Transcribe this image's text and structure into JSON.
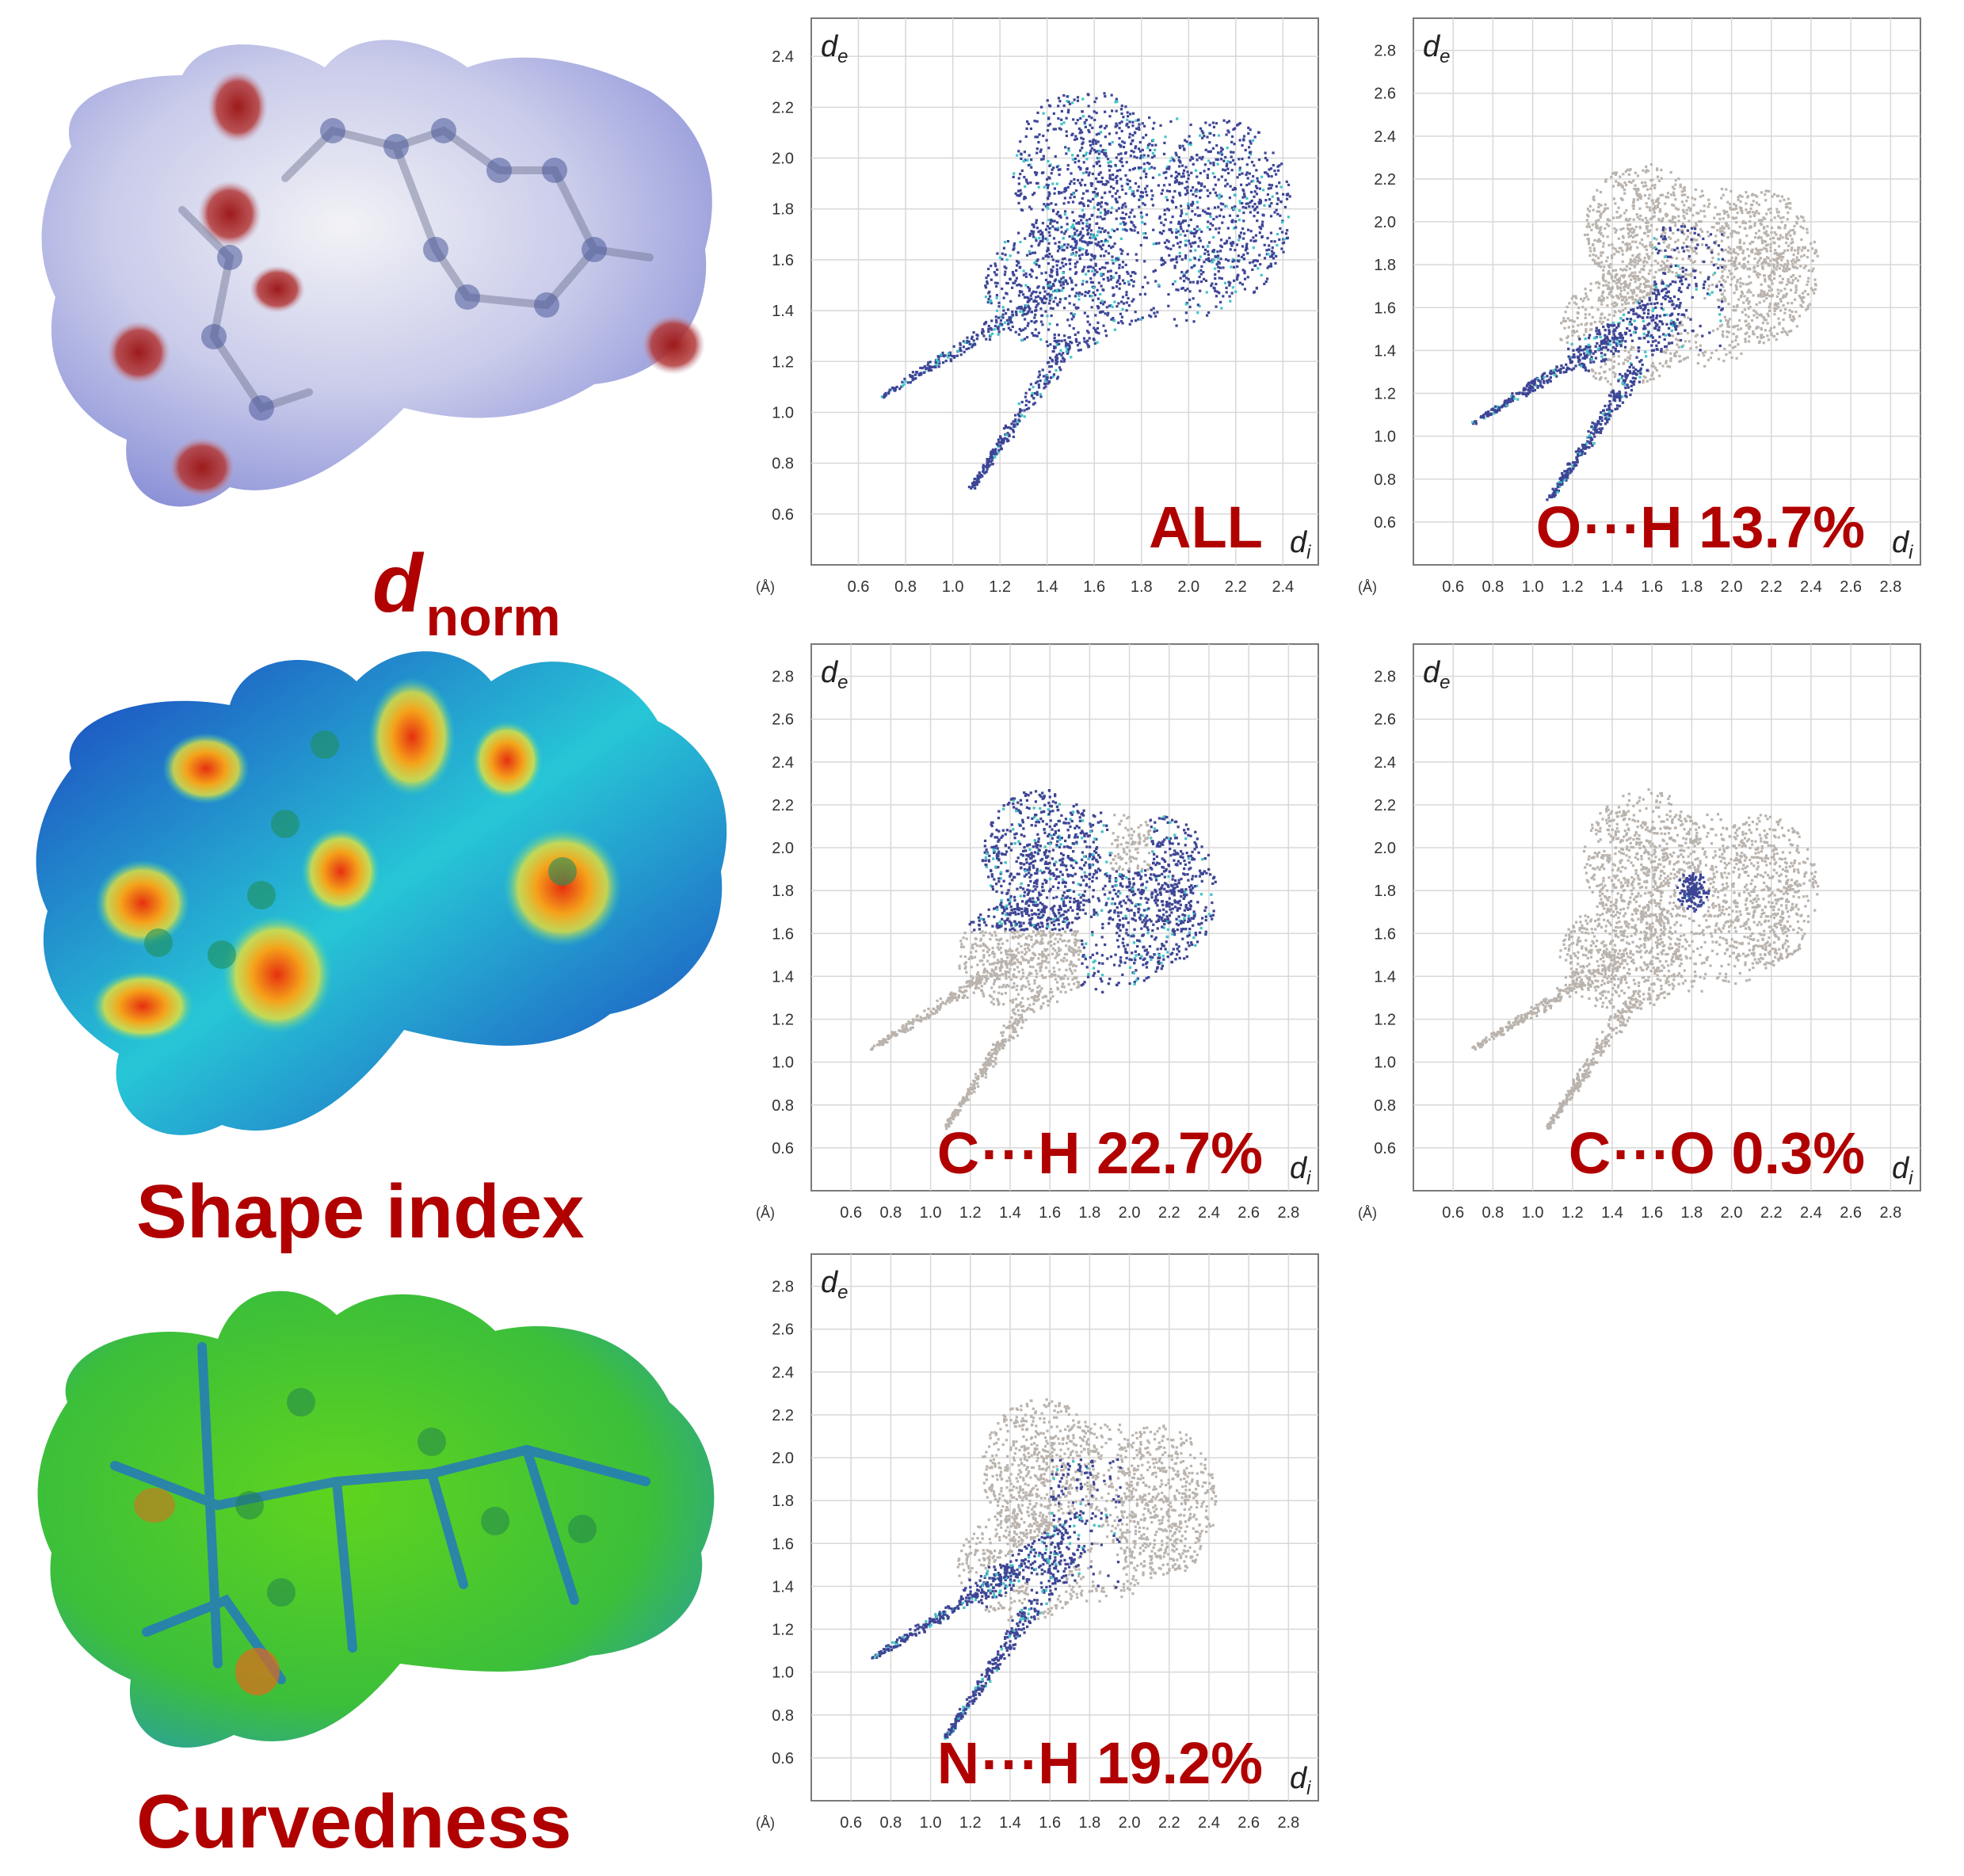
{
  "surfaces": {
    "dnorm_label": {
      "main": "d",
      "sub": "norm"
    },
    "shape_index_label": "Shape index",
    "curvedness_label": "Curvedness"
  },
  "colors": {
    "label_red": "#b00000",
    "highlight": "#3d4596",
    "highlight_light": "#41c6c8",
    "background_points": "#bab3ad",
    "grid": "#d8d8d8",
    "frame": "#7a7a7a"
  },
  "chart_data": [
    {
      "type": "scatter",
      "title": "ALL",
      "xlabel": "d_i",
      "ylabel": "d_e",
      "unit_label": "(Å)",
      "xlim": [
        0.4,
        2.55
      ],
      "ylim": [
        0.4,
        2.55
      ],
      "xticks": [
        "0.6",
        "0.8",
        "1.0",
        "1.2",
        "1.4",
        "1.6",
        "1.8",
        "2.0",
        "2.2",
        "2.4"
      ],
      "yticks": [
        "0.6",
        "0.8",
        "1.0",
        "1.2",
        "1.4",
        "1.6",
        "1.8",
        "2.0",
        "2.2",
        "2.4"
      ],
      "grid": true,
      "highlight": "full"
    },
    {
      "type": "scatter",
      "title": "O⋯H 13.7%",
      "xlabel": "d_i",
      "ylabel": "d_e",
      "unit_label": "(Å)",
      "xlim": [
        0.4,
        2.95
      ],
      "ylim": [
        0.4,
        2.95
      ],
      "xticks": [
        "0.6",
        "0.8",
        "1.0",
        "1.2",
        "1.4",
        "1.6",
        "1.8",
        "2.0",
        "2.2",
        "2.4",
        "2.6",
        "2.8"
      ],
      "yticks": [
        "0.6",
        "0.8",
        "1.0",
        "1.2",
        "1.4",
        "1.6",
        "1.8",
        "2.0",
        "2.2",
        "2.4",
        "2.6",
        "2.8"
      ],
      "grid": true,
      "highlight": "spikes",
      "contribution_percent": 13.7
    },
    {
      "type": "scatter",
      "title": "C⋯H 22.7%",
      "xlabel": "d_i",
      "ylabel": "d_e",
      "unit_label": "(Å)",
      "xlim": [
        0.4,
        2.95
      ],
      "ylim": [
        0.4,
        2.95
      ],
      "xticks": [
        "0.6",
        "0.8",
        "1.0",
        "1.2",
        "1.4",
        "1.6",
        "1.8",
        "2.0",
        "2.2",
        "2.4",
        "2.6",
        "2.8"
      ],
      "yticks": [
        "0.6",
        "0.8",
        "1.0",
        "1.2",
        "1.4",
        "1.6",
        "1.8",
        "2.0",
        "2.2",
        "2.4",
        "2.6",
        "2.8"
      ],
      "grid": true,
      "highlight": "wings",
      "contribution_percent": 22.7
    },
    {
      "type": "scatter",
      "title": "C⋯O 0.3%",
      "xlabel": "d_i",
      "ylabel": "d_e",
      "unit_label": "(Å)",
      "xlim": [
        0.4,
        2.95
      ],
      "ylim": [
        0.4,
        2.95
      ],
      "xticks": [
        "0.6",
        "0.8",
        "1.0",
        "1.2",
        "1.4",
        "1.6",
        "1.8",
        "2.0",
        "2.2",
        "2.4",
        "2.6",
        "2.8"
      ],
      "yticks": [
        "0.6",
        "0.8",
        "1.0",
        "1.2",
        "1.4",
        "1.6",
        "1.8",
        "2.0",
        "2.2",
        "2.4",
        "2.6",
        "2.8"
      ],
      "grid": true,
      "highlight": "cluster",
      "contribution_percent": 0.3
    },
    {
      "type": "scatter",
      "title": "N⋯H 19.2%",
      "xlabel": "d_i",
      "ylabel": "d_e",
      "unit_label": "(Å)",
      "xlim": [
        0.4,
        2.95
      ],
      "ylim": [
        0.4,
        2.95
      ],
      "xticks": [
        "0.6",
        "0.8",
        "1.0",
        "1.2",
        "1.4",
        "1.6",
        "1.8",
        "2.0",
        "2.2",
        "2.4",
        "2.6",
        "2.8"
      ],
      "yticks": [
        "0.6",
        "0.8",
        "1.0",
        "1.2",
        "1.4",
        "1.6",
        "1.8",
        "2.0",
        "2.2",
        "2.4",
        "2.6",
        "2.8"
      ],
      "grid": true,
      "highlight": "spikes",
      "contribution_percent": 19.2
    }
  ]
}
